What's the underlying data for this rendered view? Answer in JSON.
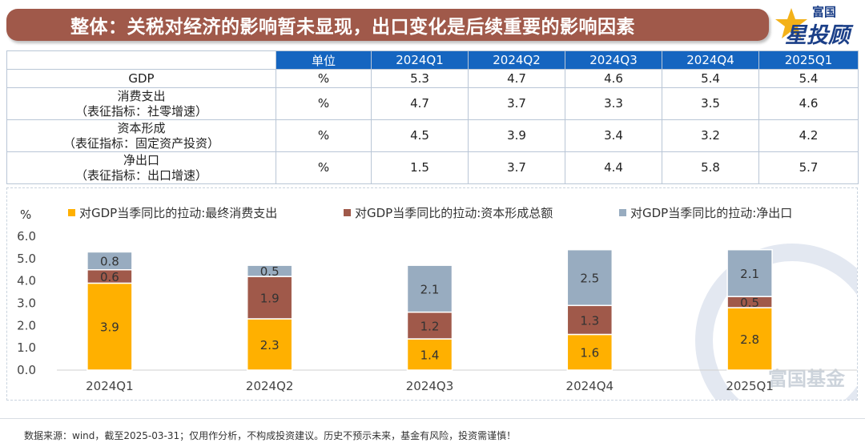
{
  "title": "整体：关税对经济的影响暂未显现，出口变化是后续重要的影响因素",
  "logo": {
    "top": "富国",
    "main": "星投顾"
  },
  "table": {
    "headers": [
      "单位",
      "2024Q1",
      "2024Q2",
      "2024Q3",
      "2024Q4",
      "2025Q1"
    ],
    "rows": [
      {
        "label": "GDP",
        "sub": "",
        "unit": "%",
        "values": [
          "5.3",
          "4.7",
          "4.6",
          "5.4",
          "5.4"
        ]
      },
      {
        "label": "消费支出",
        "sub": "（表征指标：社零增速）",
        "unit": "%",
        "values": [
          "4.7",
          "3.7",
          "3.3",
          "3.5",
          "4.6"
        ]
      },
      {
        "label": "资本形成",
        "sub": "（表征指标：固定资产投资）",
        "unit": "%",
        "values": [
          "4.5",
          "3.9",
          "3.4",
          "3.2",
          "4.2"
        ]
      },
      {
        "label": "净出口",
        "sub": "（表征指标：出口增速）",
        "unit": "%",
        "values": [
          "1.5",
          "3.7",
          "4.4",
          "5.8",
          "5.7"
        ]
      }
    ]
  },
  "chart_data": {
    "type": "bar",
    "stacked": true,
    "categories": [
      "2024Q1",
      "2024Q2",
      "2024Q3",
      "2024Q4",
      "2025Q1"
    ],
    "series": [
      {
        "name": "对GDP当季同比的拉动:最终消费支出",
        "color": "#ffb000",
        "values": [
          3.9,
          2.3,
          1.4,
          1.6,
          2.8
        ]
      },
      {
        "name": "对GDP当季同比的拉动:资本形成总额",
        "color": "#a0594a",
        "values": [
          0.6,
          1.9,
          1.2,
          1.3,
          0.5
        ]
      },
      {
        "name": "对GDP当季同比的拉动:净出口",
        "color": "#98acc0",
        "values": [
          0.8,
          0.5,
          2.1,
          2.5,
          2.1
        ]
      }
    ],
    "ylabel": "%",
    "ylim": [
      0,
      6
    ],
    "yticks": [
      "0.0",
      "1.0",
      "2.0",
      "3.0",
      "4.0",
      "5.0",
      "6.0"
    ],
    "grid": false,
    "legend": "top"
  },
  "watermark": "富国基金",
  "footer": "数据来源：wind，截至2025-03-31；仅用作分析，不构成投资建议。历史不预示未来，基金有风险，投资需谨慎！"
}
